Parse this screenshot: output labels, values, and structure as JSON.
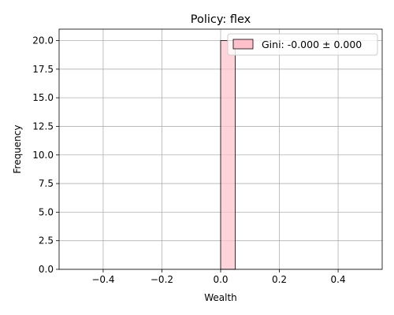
{
  "chart_data": {
    "type": "bar",
    "title": "Policy: flex",
    "xlabel": "Wealth",
    "ylabel": "Frequency",
    "xlim": [
      -0.55,
      0.55
    ],
    "ylim": [
      0,
      21
    ],
    "xticks": [
      -0.4,
      -0.2,
      0.0,
      0.2,
      0.4
    ],
    "xtick_labels": [
      "−0.4",
      "−0.2",
      "0.0",
      "0.2",
      "0.4"
    ],
    "yticks": [
      0,
      2.5,
      5,
      7.5,
      10,
      12.5,
      15,
      17.5,
      20
    ],
    "ytick_labels": [
      "0.0",
      "2.5",
      "5.0",
      "7.5",
      "10.0",
      "12.5",
      "15.0",
      "17.5",
      "20.0"
    ],
    "grid": true,
    "legend_position": "top-right",
    "series": [
      {
        "name": "Gini: -0.000 ± 0.000",
        "color": "#ffc0cb",
        "edge_color": "#000000",
        "bins": [
          {
            "x0": -0.5,
            "x1": -0.45,
            "value": 0
          },
          {
            "x0": -0.45,
            "x1": -0.4,
            "value": 0
          },
          {
            "x0": -0.4,
            "x1": -0.35,
            "value": 0
          },
          {
            "x0": -0.35,
            "x1": -0.3,
            "value": 0
          },
          {
            "x0": -0.3,
            "x1": -0.25,
            "value": 0
          },
          {
            "x0": -0.25,
            "x1": -0.2,
            "value": 0
          },
          {
            "x0": -0.2,
            "x1": -0.15,
            "value": 0
          },
          {
            "x0": -0.15,
            "x1": -0.1,
            "value": 0
          },
          {
            "x0": -0.1,
            "x1": -0.05,
            "value": 0
          },
          {
            "x0": -0.05,
            "x1": 0.0,
            "value": 0
          },
          {
            "x0": 0.0,
            "x1": 0.05,
            "value": 20
          },
          {
            "x0": 0.05,
            "x1": 0.1,
            "value": 0
          },
          {
            "x0": 0.1,
            "x1": 0.15,
            "value": 0
          },
          {
            "x0": 0.15,
            "x1": 0.2,
            "value": 0
          },
          {
            "x0": 0.2,
            "x1": 0.25,
            "value": 0
          },
          {
            "x0": 0.25,
            "x1": 0.3,
            "value": 0
          },
          {
            "x0": 0.3,
            "x1": 0.35,
            "value": 0
          },
          {
            "x0": 0.35,
            "x1": 0.4,
            "value": 0
          },
          {
            "x0": 0.4,
            "x1": 0.45,
            "value": 0
          },
          {
            "x0": 0.45,
            "x1": 0.5,
            "value": 0
          }
        ]
      }
    ]
  }
}
